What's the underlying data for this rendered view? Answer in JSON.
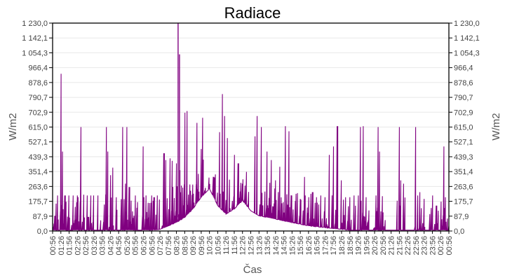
{
  "chart_data": {
    "type": "line",
    "title": "Radiace",
    "xlabel": "Čas",
    "ylabel": "W/m2",
    "ylabel_right": "W/m2",
    "ylim": [
      0,
      1230
    ],
    "y_ticks": [
      "0,0",
      "87,9",
      "175,7",
      "263,6",
      "351,4",
      "439,3",
      "527,1",
      "615,0",
      "702,9",
      "790,7",
      "878,6",
      "966,4",
      "1 054,3",
      "1 142,1",
      "1 230,0"
    ],
    "x_ticks": [
      "00:56",
      "01:26",
      "01:56",
      "02:26",
      "02:56",
      "03:26",
      "03:56",
      "04:26",
      "04:56",
      "05:26",
      "05:56",
      "06:26",
      "06:56",
      "07:26",
      "07:56",
      "08:26",
      "08:56",
      "09:26",
      "09:56",
      "10:26",
      "10:56",
      "11:26",
      "11:56",
      "12:26",
      "12:56",
      "13:26",
      "13:56",
      "14:26",
      "14:56",
      "15:26",
      "15:56",
      "16:26",
      "16:56",
      "17:26",
      "17:56",
      "18:26",
      "18:56",
      "19:26",
      "19:56",
      "20:26",
      "20:56",
      "21:26",
      "21:56",
      "22:26",
      "22:56",
      "23:26",
      "23:56",
      "00:26",
      "00:56"
    ],
    "grid": true,
    "series": [
      {
        "name": "Radiace",
        "color": "#800080",
        "note": "Approximate envelope: baseline (diffuse) + spikes; values in W/m2 at x index (0..48 half-hour ticks)",
        "baseline": [
          [
            0,
            5
          ],
          [
            12,
            5
          ],
          [
            13,
            10
          ],
          [
            14,
            30
          ],
          [
            15,
            50
          ],
          [
            16,
            80
          ],
          [
            17,
            130
          ],
          [
            18,
            200
          ],
          [
            19,
            250
          ],
          [
            20,
            150
          ],
          [
            21,
            100
          ],
          [
            22,
            130
          ],
          [
            23,
            180
          ],
          [
            24,
            120
          ],
          [
            25,
            90
          ],
          [
            26,
            80
          ],
          [
            27,
            70
          ],
          [
            28,
            60
          ],
          [
            29,
            50
          ],
          [
            30,
            40
          ],
          [
            31,
            30
          ],
          [
            32,
            25
          ],
          [
            33,
            20
          ],
          [
            34,
            15
          ],
          [
            35,
            10
          ],
          [
            36,
            5
          ],
          [
            48,
            5
          ]
        ],
        "peaks": [
          [
            0.3,
            90
          ],
          [
            0.6,
            210
          ],
          [
            1.0,
            930
          ],
          [
            1.2,
            470
          ],
          [
            1.5,
            210
          ],
          [
            2.0,
            210
          ],
          [
            2.5,
            210
          ],
          [
            3.0,
            210
          ],
          [
            3.4,
            615
          ],
          [
            3.8,
            215
          ],
          [
            4.2,
            210
          ],
          [
            4.6,
            210
          ],
          [
            5.0,
            210
          ],
          [
            5.5,
            210
          ],
          [
            6.5,
            615
          ],
          [
            6.7,
            470
          ],
          [
            7.0,
            330
          ],
          [
            7.3,
            375
          ],
          [
            7.7,
            200
          ],
          [
            8.5,
            615
          ],
          [
            8.8,
            280
          ],
          [
            9.0,
            615
          ],
          [
            9.3,
            260
          ],
          [
            10.0,
            210
          ],
          [
            11.0,
            500
          ],
          [
            11.3,
            210
          ],
          [
            12.0,
            210
          ],
          [
            12.3,
            200
          ],
          [
            12.7,
            210
          ],
          [
            13.5,
            460
          ],
          [
            13.7,
            420
          ],
          [
            14.2,
            430
          ],
          [
            14.5,
            415
          ],
          [
            15.0,
            400
          ],
          [
            15.4,
            360
          ],
          [
            16.0,
            700
          ],
          [
            16.3,
            710
          ],
          [
            17.0,
            275
          ],
          [
            17.5,
            640
          ],
          [
            18.0,
            485
          ],
          [
            18.2,
            670
          ],
          [
            19.0,
            230
          ],
          [
            19.5,
            320
          ],
          [
            20.2,
            585
          ],
          [
            20.6,
            810
          ],
          [
            20.8,
            680
          ],
          [
            21.2,
            550
          ],
          [
            22.0,
            450
          ],
          [
            22.5,
            400
          ],
          [
            23.0,
            280
          ],
          [
            23.5,
            350
          ],
          [
            24.5,
            560
          ],
          [
            24.8,
            680
          ],
          [
            25.3,
            615
          ],
          [
            26.0,
            470
          ],
          [
            26.5,
            420
          ],
          [
            27.0,
            300
          ],
          [
            27.5,
            380
          ],
          [
            28.2,
            620
          ],
          [
            28.6,
            590
          ],
          [
            29.0,
            210
          ],
          [
            29.5,
            220
          ],
          [
            30.0,
            190
          ],
          [
            30.5,
            320
          ],
          [
            31.0,
            200
          ],
          [
            31.5,
            230
          ],
          [
            32.0,
            200
          ],
          [
            32.5,
            210
          ],
          [
            33.0,
            200
          ],
          [
            33.5,
            450
          ],
          [
            34.0,
            500
          ],
          [
            34.5,
            620
          ],
          [
            35.0,
            300
          ],
          [
            35.5,
            200
          ],
          [
            36.0,
            200
          ],
          [
            36.5,
            210
          ],
          [
            37.0,
            210
          ],
          [
            37.3,
            615
          ],
          [
            37.6,
            620
          ],
          [
            38.0,
            200
          ],
          [
            39.2,
            210
          ],
          [
            39.4,
            615
          ],
          [
            39.6,
            470
          ],
          [
            40.0,
            110
          ],
          [
            42.0,
            615
          ],
          [
            42.2,
            300
          ],
          [
            42.5,
            280
          ],
          [
            44.0,
            615
          ],
          [
            44.2,
            210
          ],
          [
            44.5,
            230
          ],
          [
            45.0,
            190
          ],
          [
            46.0,
            210
          ],
          [
            46.5,
            150
          ],
          [
            47.4,
            500
          ],
          [
            47.6,
            200
          ],
          [
            48,
            30
          ]
        ]
      }
    ]
  }
}
